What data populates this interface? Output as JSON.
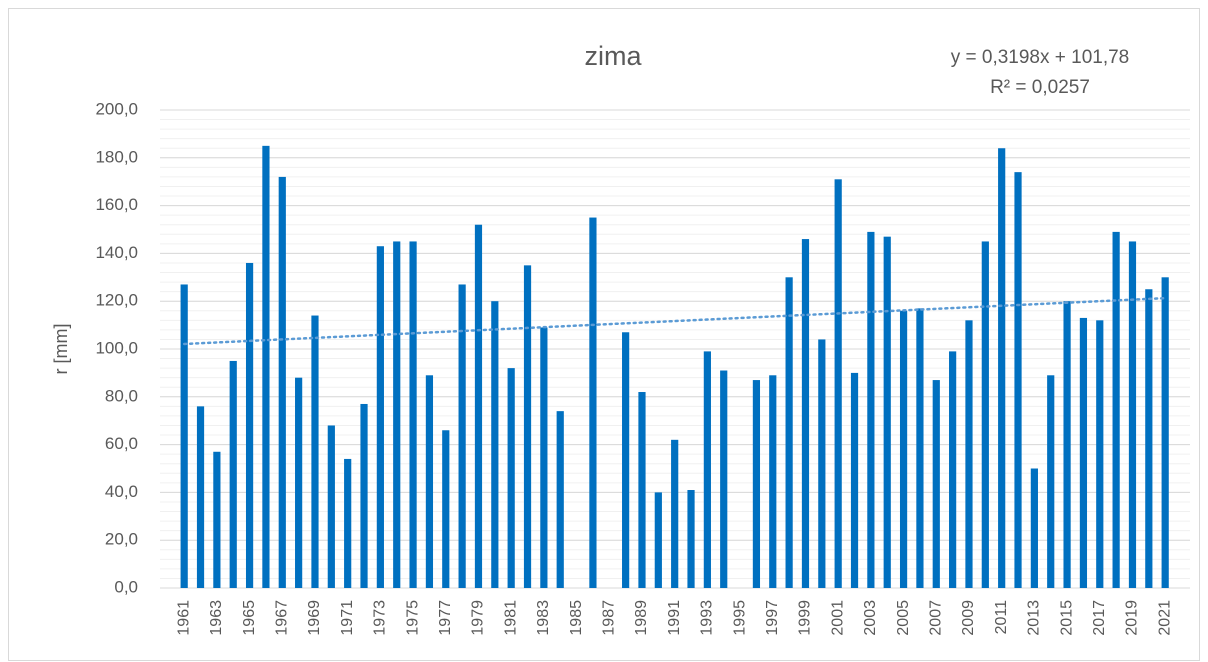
{
  "chart_data": {
    "type": "bar",
    "title": "zima",
    "y_label": "r [mm]",
    "color": "#0070c0",
    "categories": [
      "1961",
      null,
      "1963",
      null,
      "1965",
      null,
      "1967",
      null,
      "1969",
      null,
      "1971",
      null,
      "1973",
      null,
      "1975",
      null,
      "1977",
      null,
      "1979",
      null,
      "1981",
      null,
      "1983",
      null,
      "1985",
      null,
      "1987",
      null,
      "1989",
      null,
      "1991",
      null,
      "1993",
      null,
      "1995",
      null,
      "1997",
      null,
      "1999",
      null,
      "2001",
      null,
      "2003",
      null,
      "2005",
      null,
      "2007",
      null,
      "2009",
      null,
      "2011",
      null,
      "2013",
      null,
      "2015",
      null,
      "2017",
      null,
      "2019",
      null,
      "2021"
    ],
    "values": [
      127,
      76,
      57,
      95,
      136,
      185,
      172,
      88,
      114,
      68,
      54,
      77,
      143,
      145,
      145,
      89,
      66,
      127,
      152,
      120,
      92,
      135,
      109,
      74,
      null,
      155,
      null,
      107,
      82,
      40,
      62,
      41,
      99,
      91,
      null,
      87,
      89,
      130,
      146,
      104,
      171,
      90,
      149,
      147,
      116,
      117,
      87,
      99,
      112,
      145,
      184,
      174,
      50,
      89,
      120,
      113,
      112,
      149,
      145,
      125,
      130
    ],
    "ylim": [
      0,
      200
    ],
    "yticks": [
      {
        "value": 0,
        "label": "0,0"
      },
      {
        "value": 20,
        "label": "20,0"
      },
      {
        "value": 40,
        "label": "40,0"
      },
      {
        "value": 60,
        "label": "60,0"
      },
      {
        "value": 80,
        "label": "80,0"
      },
      {
        "value": 100,
        "label": "100,0"
      },
      {
        "value": 120,
        "label": "120,0"
      },
      {
        "value": 140,
        "label": "140,0"
      },
      {
        "value": 160,
        "label": "160,0"
      },
      {
        "value": 180,
        "label": "180,0"
      },
      {
        "value": 200,
        "label": "200,0"
      }
    ],
    "grid": true,
    "minor_grid_step": 4,
    "trendline": {
      "slope": 0.3198,
      "intercept": 101.78,
      "color": "#5b9bd5",
      "equation": "y = 0,3198x + 101,78",
      "r_squared": "R² = 0,0257"
    }
  }
}
